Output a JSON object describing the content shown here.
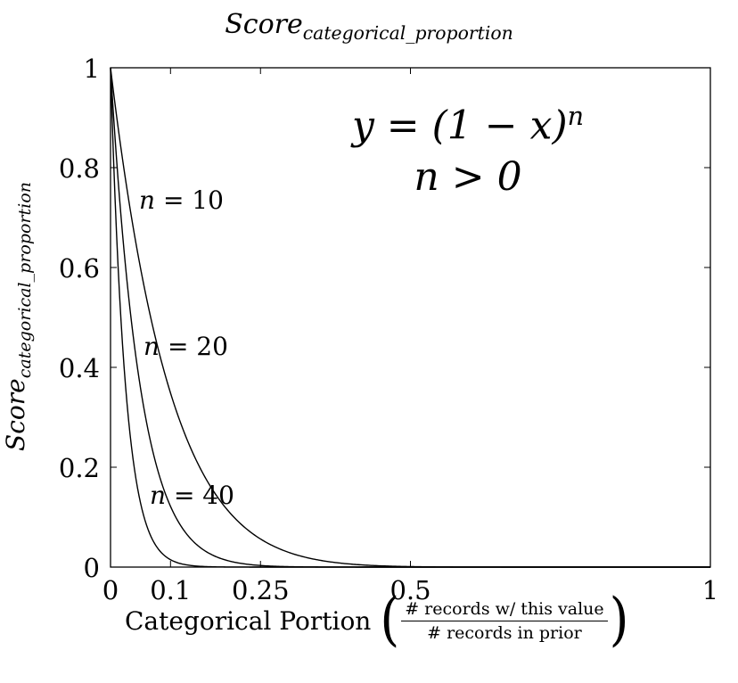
{
  "title": {
    "base": "Score",
    "sub": "categorical_proportion"
  },
  "ylabel": {
    "base": "Score",
    "sub": "categorical_proportion"
  },
  "xlabel": {
    "text": "Categorical Portion",
    "numerator": "# records w/ this value",
    "denominator": "# records in prior"
  },
  "equation": {
    "line1_prefix": "y = (1 − x)",
    "line1_sup": "n",
    "line2": "n > 0"
  },
  "curve_labels": [
    {
      "var": "n",
      "text": " = 10"
    },
    {
      "var": "n",
      "text": " = 20"
    },
    {
      "var": "n",
      "text": " = 40"
    }
  ],
  "chart_data": {
    "type": "line",
    "title": "Score_categorical_proportion",
    "xlabel": "Categorical Portion (# records w/ this value / # records in prior)",
    "ylabel": "Score_categorical_proportion",
    "xlim": [
      0,
      1
    ],
    "ylim": [
      0,
      1
    ],
    "x_ticks": [
      0,
      0.1,
      0.25,
      0.5,
      1
    ],
    "x_tick_labels": [
      "0",
      "0.1",
      "0.25",
      "0.5",
      "1"
    ],
    "y_ticks": [
      0,
      0.2,
      0.4,
      0.6,
      0.8,
      1
    ],
    "y_tick_labels": [
      "0",
      "0.2",
      "0.4",
      "0.6",
      "0.8",
      "1"
    ],
    "grid": false,
    "function": "y = (1 - x)^n",
    "series": [
      {
        "name": "n = 10",
        "n": 10,
        "x": [
          0,
          0.05,
          0.1,
          0.15,
          0.2,
          0.25,
          0.3,
          0.4,
          0.5,
          0.6,
          1
        ],
        "y": [
          1,
          0.599,
          0.349,
          0.197,
          0.107,
          0.056,
          0.028,
          0.006,
          0.001,
          0.0001,
          0
        ]
      },
      {
        "name": "n = 20",
        "n": 20,
        "x": [
          0,
          0.05,
          0.1,
          0.15,
          0.2,
          0.25,
          0.3,
          0.4,
          0.5,
          1
        ],
        "y": [
          1,
          0.358,
          0.122,
          0.039,
          0.012,
          0.003,
          0.001,
          0,
          0,
          0
        ]
      },
      {
        "name": "n = 40",
        "n": 40,
        "x": [
          0,
          0.025,
          0.05,
          0.1,
          0.15,
          0.2,
          0.3,
          0.5,
          1
        ],
        "y": [
          1,
          0.363,
          0.129,
          0.015,
          0.002,
          0,
          0,
          0,
          0
        ]
      }
    ],
    "colors": {
      "line": "#000000",
      "axis": "#000000"
    }
  }
}
